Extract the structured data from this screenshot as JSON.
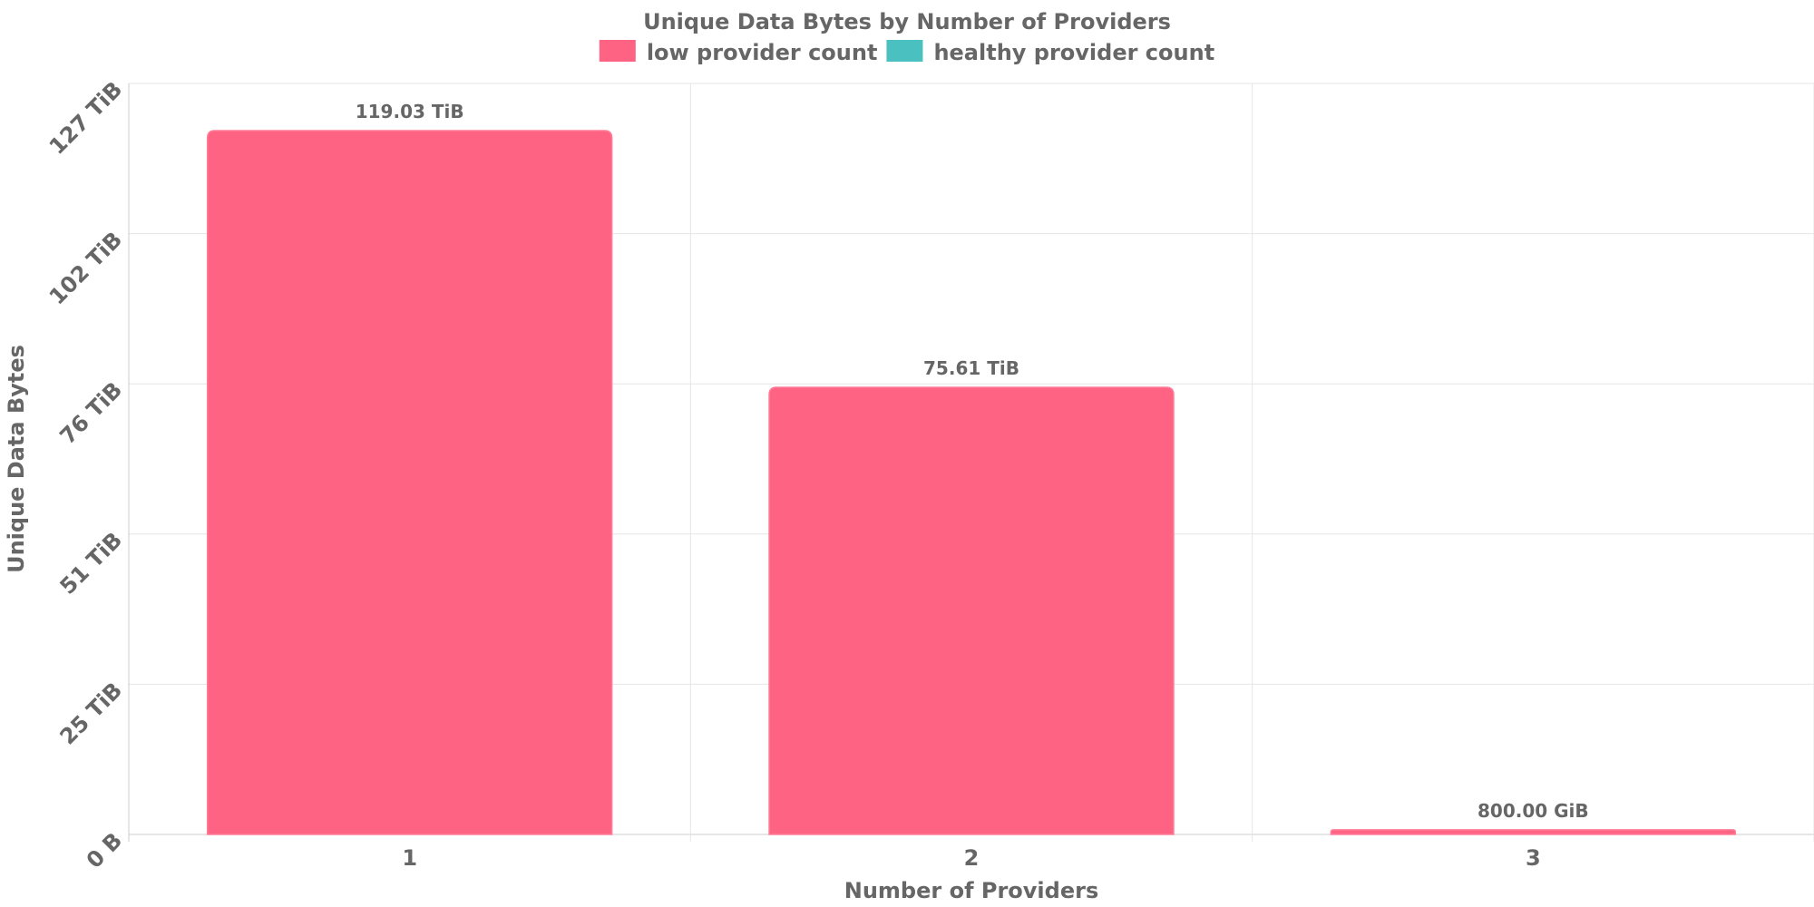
{
  "chart_data": {
    "type": "bar",
    "title": "Unique Data Bytes by Number of Providers",
    "xlabel": "Number of Providers",
    "ylabel": "Unique Data Bytes",
    "categories": [
      "1",
      "2",
      "3"
    ],
    "ylim": [
      0,
      127
    ],
    "y_unit": "TiB",
    "y_ticks": [
      {
        "value": 0,
        "label": "0 B"
      },
      {
        "value": 25.4,
        "label": "25 TiB"
      },
      {
        "value": 50.8,
        "label": "51 TiB"
      },
      {
        "value": 76.2,
        "label": "76 TiB"
      },
      {
        "value": 101.6,
        "label": "102 TiB"
      },
      {
        "value": 127,
        "label": "127 TiB"
      }
    ],
    "series": [
      {
        "name": "low provider count",
        "color": "#ff6384",
        "values": [
          119.03,
          75.61,
          0.78125
        ],
        "labels": [
          "119.03 TiB",
          "75.61 TiB",
          "800.00 GiB"
        ]
      },
      {
        "name": "healthy provider count",
        "color": "#4bc0c0",
        "values": [
          0,
          0,
          0
        ],
        "labels": [
          "",
          "",
          ""
        ]
      }
    ],
    "grid": true,
    "legend_position": "top"
  }
}
